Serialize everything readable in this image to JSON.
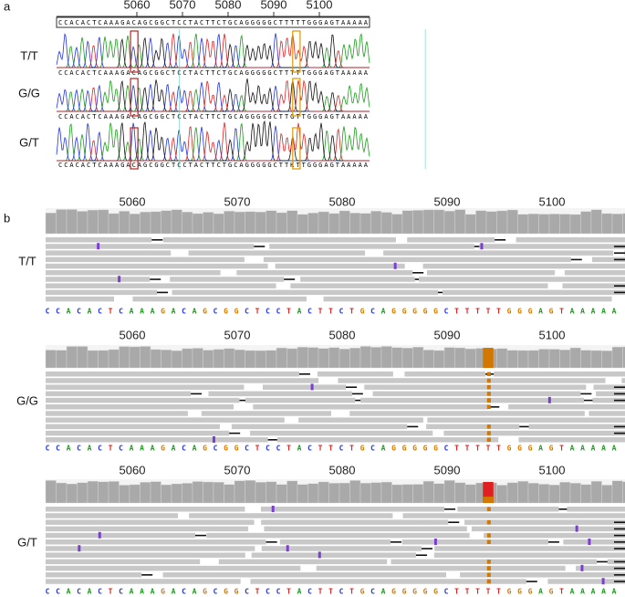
{
  "panel_a": {
    "label": "a",
    "ticks": [
      5060,
      5070,
      5080,
      5090,
      5100
    ],
    "reference": "CCACACTCAAAGACAGCGGCTCCTACTTCTGCAGGGGGCTTTTTGGGAGTAAAAA",
    "samples": [
      {
        "label": "T/T",
        "basecalls": "CCACACTCAAAGACAGCGGCTCCTACTTCTGCAGGGGGCTTTTTGGGAGTAAAAA"
      },
      {
        "label": "G/G",
        "basecalls": "CCACACTCAAAGACAGCGGCTCCTACTTCTGCAGGGGGCTTGTTGGGAGTAAAAA"
      },
      {
        "label": "G/T",
        "basecalls": "CCACACTCAAAGACAGCGGCTCCTACTTCTGCAGGGGGCTTKTTGGGAGTAAAAA"
      }
    ]
  },
  "panel_b": {
    "label": "b",
    "ticks": [
      5060,
      5070,
      5080,
      5090,
      5100
    ],
    "reference": [
      "C",
      "C",
      "A",
      "C",
      "A",
      "C",
      "T",
      "C",
      "A",
      "A",
      "A",
      "G",
      "A",
      "C",
      "A",
      "G",
      "C",
      "G",
      "G",
      "C",
      "T",
      "C",
      "C",
      "T",
      "A",
      "C",
      "T",
      "T",
      "C",
      "T",
      "G",
      "C",
      "A",
      "G",
      "G",
      "G",
      "G",
      "G",
      "C",
      "T",
      "T",
      "T",
      "T",
      "T",
      "G",
      "G",
      "G",
      "A",
      "G",
      "T",
      "A",
      "A",
      "A",
      "A",
      "A"
    ],
    "tracks": [
      {
        "label": "T/T"
      },
      {
        "label": "G/G"
      },
      {
        "label": "G/T"
      }
    ]
  }
}
